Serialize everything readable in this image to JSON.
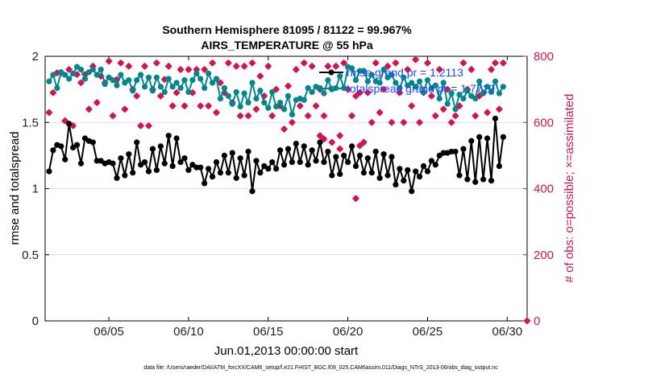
{
  "chart_data": {
    "type": "line",
    "title_line1": "Southern Hemisphere 81095 / 81122 = 99.967%",
    "title_line2": "AIRS_TEMPERATURE @ 55 hPa",
    "xlabel": "Jun.01,2013 00:00:00 start",
    "ylabel_left": "rmse and totalspread",
    "ylabel_right": "# of obs: o=possible; ×=assimilated",
    "footer": "data file: /Users/raeder/DAI/ATM_forcXX/CAM6_setup/f.e21.FHIST_BGC.f09_025.CAM6assim.011/Diags_NTrS_2013-06/obs_diag_output.nc",
    "xlim": [
      1.0,
      31.25
    ],
    "ylim_left": [
      0,
      2
    ],
    "ylim_right": [
      0,
      800
    ],
    "x_ticks": [
      5,
      10,
      15,
      20,
      25,
      30
    ],
    "x_tick_labels": [
      "06/05",
      "06/10",
      "06/15",
      "06/20",
      "06/25",
      "06/30"
    ],
    "y_left_ticks": [
      0,
      0.5,
      1,
      1.5,
      2
    ],
    "y_left_tick_labels": [
      "0",
      "0.5",
      "1",
      "1.5",
      "2"
    ],
    "y_right_ticks": [
      0,
      200,
      400,
      600,
      800
    ],
    "y_right_tick_labels": [
      "0",
      "200",
      "400",
      "600",
      "800"
    ],
    "x_step_days": 0.25,
    "x_start": 1.25,
    "colors": {
      "rmse": "#000000",
      "spread": "#00868b",
      "obs": "#d01556",
      "legend_text": "#2244ff",
      "grid": "#eecccc"
    },
    "legend": [
      {
        "name": "rmse grand pr = 1.2113",
        "series": "rmse"
      },
      {
        "name": "totalspread grand pr = 1.7719",
        "series": "spread"
      }
    ],
    "series": [
      {
        "name": "rmse",
        "axis": "left",
        "values": [
          1.13,
          1.29,
          1.33,
          1.32,
          1.22,
          1.49,
          1.31,
          1.33,
          1.19,
          1.38,
          1.36,
          1.35,
          1.21,
          1.21,
          1.19,
          1.2,
          1.19,
          1.08,
          1.23,
          1.1,
          1.26,
          1.12,
          1.35,
          1.18,
          1.2,
          1.13,
          1.3,
          1.14,
          1.32,
          1.19,
          1.4,
          1.17,
          1.38,
          1.2,
          1.23,
          1.14,
          1.18,
          1.16,
          1.16,
          1.04,
          1.15,
          1.09,
          1.2,
          1.12,
          1.25,
          1.12,
          1.27,
          1.08,
          1.23,
          1.1,
          1.28,
          0.98,
          1.21,
          1.12,
          1.17,
          1.15,
          1.2,
          1.15,
          1.29,
          1.18,
          1.3,
          1.2,
          1.34,
          1.2,
          1.32,
          1.18,
          1.29,
          1.21,
          1.35,
          1.2,
          1.28,
          1.1,
          1.24,
          1.11,
          1.25,
          1.2,
          1.32,
          1.17,
          1.25,
          1.12,
          1.23,
          1.12,
          1.28,
          1.08,
          1.26,
          1.1,
          1.24,
          1.03,
          1.15,
          1.06,
          1.14,
          0.98,
          1.13,
          1.09,
          1.17,
          1.13,
          1.21,
          1.18,
          1.25,
          1.27,
          1.27,
          1.28,
          1.28,
          1.1,
          1.3,
          1.07,
          1.36,
          1.05,
          1.39,
          1.07,
          1.38,
          1.06,
          1.53,
          1.17,
          1.39
        ],
        "color": "#000000"
      },
      {
        "name": "totalspread",
        "axis": "left",
        "values": [
          1.81,
          1.86,
          1.76,
          1.88,
          1.86,
          1.83,
          1.87,
          1.92,
          1.9,
          1.83,
          1.88,
          1.9,
          1.86,
          1.9,
          1.79,
          1.84,
          1.82,
          1.78,
          1.86,
          1.8,
          1.82,
          1.74,
          1.82,
          1.86,
          1.77,
          1.84,
          1.74,
          1.84,
          1.77,
          1.73,
          1.83,
          1.77,
          1.8,
          1.76,
          1.82,
          1.73,
          1.82,
          1.87,
          1.83,
          1.76,
          1.87,
          1.8,
          1.83,
          1.68,
          1.76,
          1.7,
          1.64,
          1.73,
          1.62,
          1.72,
          1.65,
          1.8,
          1.68,
          1.74,
          1.65,
          1.61,
          1.73,
          1.62,
          1.65,
          1.6,
          1.7,
          1.56,
          1.67,
          1.68,
          1.67,
          1.76,
          1.73,
          1.77,
          1.76,
          1.72,
          1.82,
          1.75,
          1.76,
          1.85,
          1.76,
          1.92,
          1.91,
          1.82,
          1.89,
          1.89,
          1.81,
          1.86,
          1.81,
          1.8,
          1.9,
          1.84,
          1.86,
          1.8,
          1.76,
          1.84,
          1.78,
          1.8,
          1.77,
          1.81,
          1.73,
          1.82,
          1.76,
          1.78,
          1.68,
          1.8,
          1.64,
          1.72,
          1.6,
          1.71,
          1.68,
          1.74,
          1.7,
          1.68,
          1.81,
          1.72,
          1.77,
          1.73,
          1.81,
          1.72,
          1.77
        ],
        "color": "#00868b"
      },
      {
        "name": "# obs assimilated",
        "axis": "right",
        "values": [
          630,
          690,
          750,
          750,
          605,
          760,
          590,
          745,
          720,
          745,
          640,
          770,
          660,
          740,
          720,
          785,
          620,
          730,
          780,
          640,
          770,
          700,
          680,
          590,
          770,
          590,
          700,
          780,
          680,
          730,
          770,
          650,
          690,
          760,
          650,
          760,
          690,
          760,
          650,
          760,
          650,
          780,
          630,
          720,
          690,
          780,
          660,
          770,
          620,
          770,
          620,
          780,
          640,
          740,
          680,
          770,
          620,
          700,
          650,
          580,
          710,
          600,
          760,
          650,
          780,
          620,
          770,
          650,
          700,
          620,
          770,
          540,
          770,
          560,
          780,
          700,
          620,
          680,
          690,
          540,
          690,
          600,
          780,
          630,
          700,
          770,
          600,
          780,
          690,
          600,
          760,
          650,
          790,
          600,
          690,
          780,
          680,
          620,
          760,
          640,
          700,
          600,
          620,
          650,
          780,
          700,
          760,
          620,
          680,
          690,
          630,
          760,
          780,
          640,
          780
        ],
        "color": "#d01556"
      }
    ],
    "obs_outliers": [
      {
        "x": 18.25,
        "y": 560
      },
      {
        "x": 18.5,
        "y": 550
      },
      {
        "x": 19.5,
        "y": 520
      },
      {
        "x": 20.75,
        "y": 530
      },
      {
        "x": 20.5,
        "y": 370
      },
      {
        "x": 31.25,
        "y": 0
      }
    ]
  }
}
